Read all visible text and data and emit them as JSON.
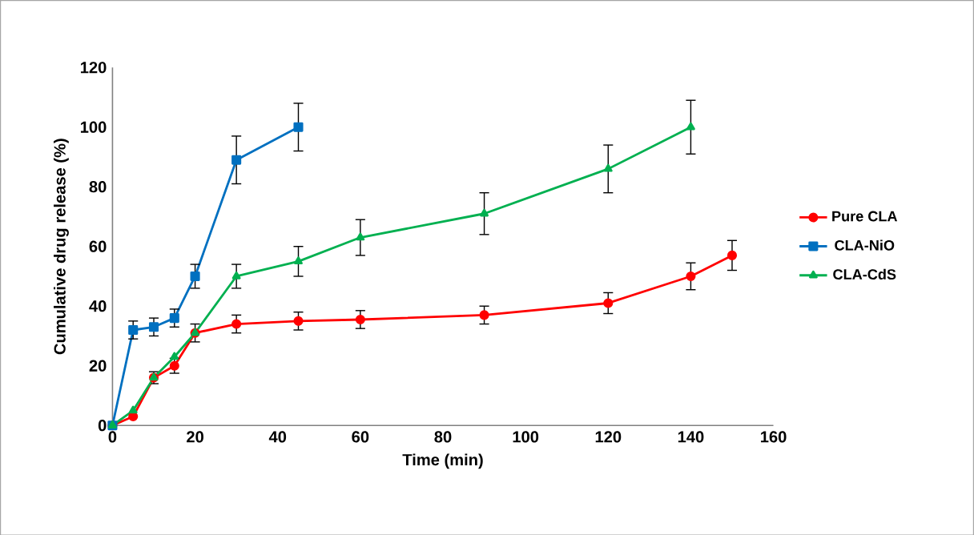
{
  "chart_data": {
    "type": "line",
    "xlabel": "Time (min)",
    "ylabel": "Cumulative drug release (%)",
    "xlim": [
      0,
      160
    ],
    "xticks": [
      0,
      20,
      40,
      60,
      80,
      100,
      120,
      140,
      160
    ],
    "ylim": [
      0,
      120
    ],
    "yticks": [
      0,
      20,
      40,
      60,
      80,
      100,
      120
    ],
    "grid": false,
    "legend": "right",
    "series": [
      {
        "name": "Pure CLA",
        "color": "#ff0000",
        "marker": "circle",
        "x": [
          0,
          5,
          10,
          15,
          20,
          30,
          45,
          60,
          90,
          120,
          140,
          150
        ],
        "values": [
          0,
          3,
          16,
          20,
          31,
          34,
          35,
          35.5,
          37,
          41,
          50,
          57
        ],
        "errors": [
          null,
          null,
          2,
          2.5,
          3,
          3,
          3,
          3,
          3,
          3.5,
          4.5,
          5
        ]
      },
      {
        "name": "CLA-NiO",
        "color": "#0070c0",
        "marker": "square",
        "x": [
          0,
          5,
          10,
          15,
          20,
          30,
          45
        ],
        "values": [
          0,
          32,
          33,
          36,
          50,
          89,
          100
        ],
        "errors": [
          null,
          3,
          3,
          3,
          4,
          8,
          8
        ]
      },
      {
        "name": "CLA-CdS",
        "color": "#00b050",
        "marker": "triangle",
        "x": [
          0,
          5,
          10,
          15,
          20,
          30,
          45,
          60,
          90,
          120,
          140
        ],
        "values": [
          0,
          5,
          16,
          23,
          31,
          50,
          55,
          63,
          71,
          86,
          100
        ],
        "errors": [
          null,
          null,
          null,
          null,
          null,
          4,
          5,
          6,
          7,
          8,
          9
        ]
      }
    ]
  }
}
